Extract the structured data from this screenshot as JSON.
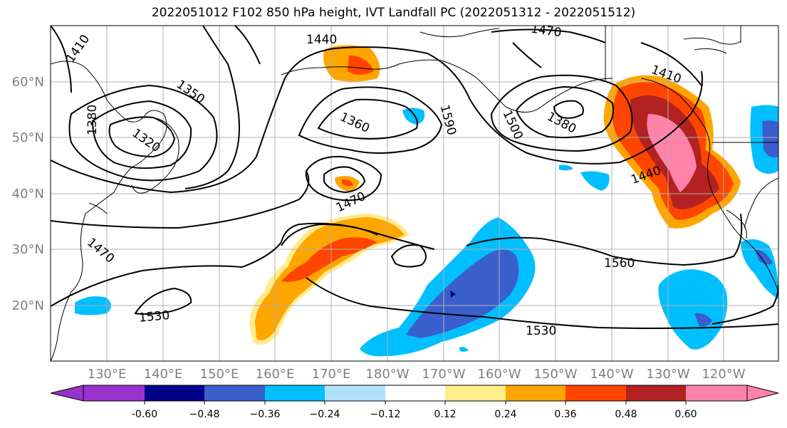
{
  "title": "2022051012 F102 850 hPa height, IVT Landfall PC (2022051312 - 2022051512)",
  "axes": {
    "lat_labels": [
      "60°N",
      "50°N",
      "40°N",
      "30°N",
      "20°N"
    ],
    "lon_labels": [
      "130°E",
      "140°E",
      "150°E",
      "160°E",
      "170°E",
      "180°W",
      "170°W",
      "160°W",
      "150°W",
      "140°W",
      "130°W",
      "120°W"
    ]
  },
  "contour_labels": [
    "1410",
    "1440",
    "1470",
    "1350",
    "1380",
    "1320",
    "1360",
    "1590",
    "1500",
    "1380",
    "1410",
    "1440",
    "1470",
    "1470",
    "1560",
    "1530",
    "1530"
  ],
  "colorbar": {
    "ticks": [
      "-0.60",
      "−0.48",
      "−0.36",
      "−0.24",
      "−0.12",
      "0.12",
      "0.24",
      "0.36",
      "0.48",
      "0.60"
    ],
    "colors": [
      "#9932cc",
      "#00008b",
      "#3a5fcd",
      "#00bfff",
      "#b2e2fb",
      "#ffffff",
      "#ffec8b",
      "#ffa500",
      "#ff4500",
      "#b22222",
      "#ff82ab"
    ]
  }
}
